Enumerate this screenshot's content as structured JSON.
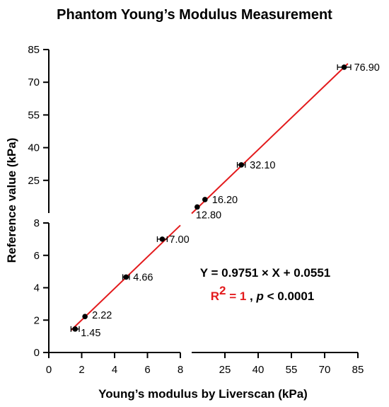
{
  "chart_data": {
    "type": "scatter",
    "title": "Phantom Young’s Modulus Measurement",
    "xlabel": "Young’s modulus by Liverscan (kPa)",
    "ylabel": "Reference value (kPa)",
    "x_axis_segments": [
      {
        "range": [
          0,
          8
        ],
        "ticks": [
          0,
          2,
          4,
          6,
          8
        ],
        "tick_labels": [
          "0",
          "2",
          "4",
          "6",
          "8"
        ]
      },
      {
        "range": [
          10,
          85
        ],
        "ticks": [
          25,
          40,
          55,
          70,
          85
        ],
        "tick_labels": [
          "25",
          "40",
          "55",
          "70",
          "85"
        ]
      }
    ],
    "y_axis_segments": [
      {
        "range": [
          0,
          8
        ],
        "ticks": [
          0,
          2,
          4,
          6,
          8
        ],
        "tick_labels": [
          "0",
          "2",
          "4",
          "6",
          "8"
        ]
      },
      {
        "range": [
          10,
          85
        ],
        "ticks": [
          25,
          40,
          55,
          70,
          85
        ],
        "tick_labels": [
          "25",
          "40",
          "55",
          "70",
          "85"
        ]
      }
    ],
    "axis_break": true,
    "grid": false,
    "points": [
      {
        "x": 1.6,
        "y": 1.45,
        "x_err": 0.25,
        "label": "1.45"
      },
      {
        "x": 2.2,
        "y": 2.22,
        "x_err": 0.0,
        "label": "2.22"
      },
      {
        "x": 4.7,
        "y": 4.66,
        "x_err": 0.2,
        "label": "4.66"
      },
      {
        "x": 6.9,
        "y": 7.0,
        "x_err": 0.3,
        "label": "7.00"
      },
      {
        "x": 12.5,
        "y": 12.8,
        "x_err": 0.0,
        "label": "12.80"
      },
      {
        "x": 16.0,
        "y": 16.2,
        "x_err": 0.0,
        "label": "16.20"
      },
      {
        "x": 32.4,
        "y": 32.1,
        "x_err": 1.8,
        "label": "32.10"
      },
      {
        "x": 78.8,
        "y": 76.9,
        "x_err": 3.0,
        "label": "76.90"
      }
    ],
    "fit": {
      "slope": 0.9751,
      "intercept": 0.0551,
      "equation": "Y = 0.9751 × X + 0.0551",
      "r2_label": "R",
      "r2_exponent": "2",
      "r2_value": " = 1",
      "p_prefix": " , ",
      "p_symbol": "p",
      "p_value": " < 0.0001"
    },
    "colors": {
      "points": "#000000",
      "fit_line": "#e31a1c",
      "r2_text": "#e31a1c"
    }
  }
}
